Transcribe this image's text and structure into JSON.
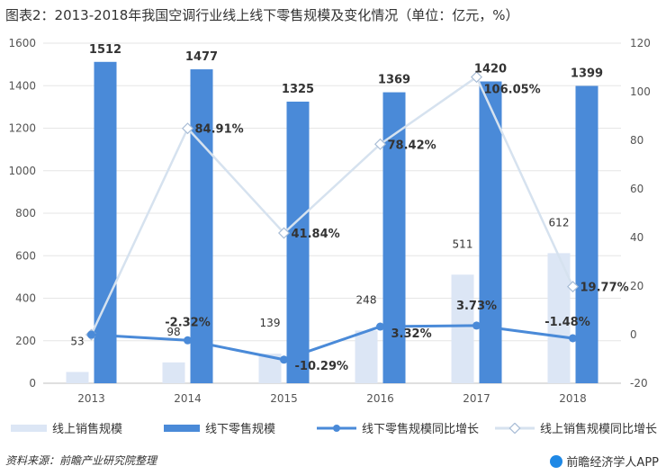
{
  "header": {
    "title": "图表2：2013-2018年我国空调行业线上线下零售规模及变化情况（单位：亿元，%）"
  },
  "chart_data": {
    "type": "bar",
    "categories": [
      "2013",
      "2014",
      "2015",
      "2016",
      "2017",
      "2018"
    ],
    "series": [
      {
        "name": "线上销售规模",
        "kind": "bar",
        "axis": "left",
        "values": [
          53,
          98,
          139,
          248,
          511,
          612
        ],
        "color": "#dce6f5"
      },
      {
        "name": "线下零售规模",
        "kind": "bar",
        "axis": "left",
        "values": [
          1512,
          1477,
          1325,
          1369,
          1420,
          1399
        ],
        "color": "#4a8ad8"
      },
      {
        "name": "线下零售规模同比增长",
        "kind": "line",
        "axis": "right",
        "values": [
          null,
          -2.32,
          -10.29,
          3.32,
          3.73,
          -1.48
        ],
        "color": "#4a8ad8"
      },
      {
        "name": "线上销售规模同比增长",
        "kind": "line",
        "axis": "right",
        "values": [
          null,
          84.91,
          41.84,
          78.42,
          106.05,
          19.77
        ],
        "color": "#d6e2ef"
      }
    ],
    "bar_labels_online": [
      "53",
      "98",
      "139",
      "248",
      "511",
      "612"
    ],
    "bar_labels_offline": [
      "1512",
      "1477",
      "1325",
      "1369",
      "1420",
      "1399"
    ],
    "line_labels_offline": [
      "-2.32%",
      "-10.29%",
      "3.32%",
      "3.73%",
      "-1.48%"
    ],
    "line_labels_online": [
      "84.91%",
      "41.84%",
      "78.42%",
      "106.05%",
      "19.77%"
    ],
    "ylim_left": [
      0,
      1600
    ],
    "yticks_left": [
      "0",
      "200",
      "400",
      "600",
      "800",
      "1000",
      "1200",
      "1400",
      "1600"
    ],
    "ylim_right": [
      -20,
      120
    ],
    "yticks_right": [
      "-20",
      "0",
      "20",
      "40",
      "60",
      "80",
      "100",
      "120"
    ]
  },
  "legend": {
    "items": [
      "线上销售规模",
      "线下零售规模",
      "线下零售规模同比增长",
      "线上销售规模同比增长"
    ]
  },
  "footer": {
    "source": "资料来源：前瞻产业研究院整理",
    "brand": "前瞻经济学人APP"
  }
}
